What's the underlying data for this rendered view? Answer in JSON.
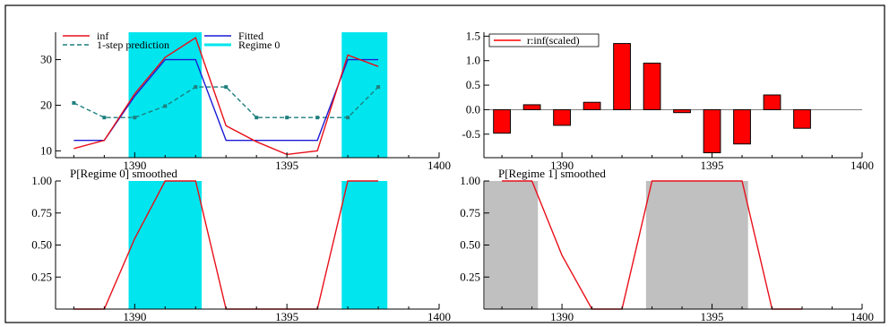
{
  "chart_data": [
    {
      "id": "top-left",
      "type": "line",
      "title": "",
      "xlim": [
        1387.4,
        1400
      ],
      "ylim": [
        8.5,
        36
      ],
      "xticks": [
        1390,
        1395,
        1400
      ],
      "yticks": [
        10,
        20,
        30
      ],
      "regime_bands": [
        [
          1389.8,
          1392.2
        ],
        [
          1396.8,
          1398.3
        ]
      ],
      "legend": [
        "inf",
        "Fitted",
        "1-step prediction",
        "Regime 0"
      ],
      "series": [
        {
          "name": "inf",
          "color": "#e8101a",
          "x": [
            1388,
            1389,
            1390,
            1391,
            1392,
            1393,
            1394,
            1395,
            1396,
            1397,
            1398
          ],
          "values": [
            10.5,
            12.3,
            22.5,
            30.5,
            34.8,
            15.5,
            12.0,
            9.2,
            10.0,
            31.0,
            28.5
          ]
        },
        {
          "name": "Fitted",
          "color": "#1b1bd6",
          "x": [
            1388,
            1389,
            1390,
            1391,
            1392,
            1393,
            1394,
            1395,
            1396,
            1397,
            1398
          ],
          "values": [
            12.3,
            12.3,
            22.0,
            30.0,
            30.0,
            12.3,
            12.3,
            12.3,
            12.3,
            30.0,
            30.0
          ]
        },
        {
          "name": "1-step prediction",
          "color": "#1f7f7f",
          "x": [
            1388,
            1389,
            1390,
            1391,
            1392,
            1393,
            1394,
            1395,
            1396,
            1397,
            1398
          ],
          "values": [
            20.5,
            17.3,
            17.3,
            19.8,
            24.0,
            24.0,
            17.3,
            17.3,
            17.3,
            17.3,
            24.0
          ]
        }
      ]
    },
    {
      "id": "top-right",
      "type": "bar",
      "title": "",
      "xlim": [
        1387.4,
        1400
      ],
      "ylim": [
        -0.98,
        1.58
      ],
      "xticks": [
        1390,
        1395,
        1400
      ],
      "yticks": [
        1.5,
        1.0,
        0.5,
        0.0,
        -0.5
      ],
      "ytick_labels": [
        "1.5",
        "1.0",
        "0.5",
        "0.0",
        "-0.5"
      ],
      "legend": [
        "r:inf(scaled)"
      ],
      "x": [
        1388,
        1389,
        1390,
        1391,
        1392,
        1393,
        1394,
        1395,
        1396,
        1397,
        1398
      ],
      "values": [
        -0.48,
        0.1,
        -0.32,
        0.15,
        1.35,
        0.95,
        -0.06,
        -0.88,
        -0.7,
        0.3,
        -0.38
      ]
    },
    {
      "id": "bottom-left",
      "type": "line",
      "title": "P[Regime 0] smoothed",
      "xlim": [
        1387.4,
        1400
      ],
      "ylim": [
        0,
        1.0
      ],
      "xticks": [
        1390,
        1395,
        1400
      ],
      "yticks": [
        0.25,
        0.5,
        0.75,
        1.0
      ],
      "ytick_labels": [
        "0.25",
        "0.50",
        "0.75",
        "1.00"
      ],
      "bands": [
        [
          1389.8,
          1392.2
        ],
        [
          1396.8,
          1398.3
        ]
      ],
      "x": [
        1388,
        1389,
        1390,
        1391,
        1392,
        1393,
        1394,
        1395,
        1396,
        1397,
        1398
      ],
      "values": [
        0,
        0,
        0.55,
        1.0,
        1.0,
        0,
        0,
        0,
        0,
        1.0,
        1.0
      ]
    },
    {
      "id": "bottom-right",
      "type": "line",
      "title": "P[Regime 1] smoothed",
      "xlim": [
        1387.4,
        1400
      ],
      "ylim": [
        0,
        1.0
      ],
      "xticks": [
        1390,
        1395,
        1400
      ],
      "yticks": [
        0.25,
        0.5,
        0.75,
        1.0
      ],
      "ytick_labels": [
        "0.25",
        "0.50",
        "0.75",
        "1.00"
      ],
      "bands": [
        [
          1387.4,
          1389.2
        ],
        [
          1392.8,
          1396.2
        ]
      ],
      "x": [
        1388,
        1389,
        1390,
        1391,
        1392,
        1393,
        1394,
        1395,
        1396,
        1397,
        1398
      ],
      "values": [
        1.0,
        1.0,
        0.42,
        0,
        0,
        1.0,
        1.0,
        1.0,
        1.0,
        0,
        0
      ]
    }
  ]
}
